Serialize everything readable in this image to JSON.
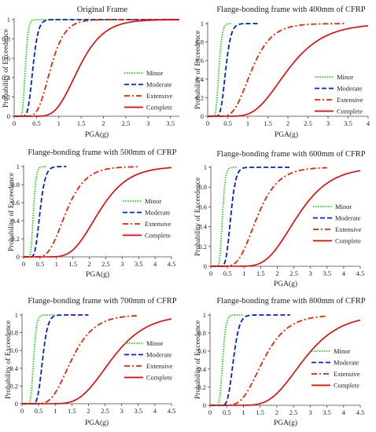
{
  "style": {
    "colors": {
      "Minor": "#22cc22",
      "Moderate": "#0022cc",
      "Extensive": "#ee2200",
      "Complete": "#ee0000"
    },
    "dash": {
      "Minor": "1.5,1.6",
      "Moderate": "6,3",
      "Extensive": "7,3,2,3",
      "Complete": ""
    }
  },
  "chart_data": [
    {
      "type": "line",
      "title": "Original Frame",
      "xlabel": "PGA(g)",
      "ylabel": "Probability of Exceedence",
      "xlim": [
        0,
        3.7
      ],
      "ylim": [
        0,
        1
      ],
      "xticks": [
        0,
        0.5,
        1,
        1.5,
        2,
        2.5,
        3,
        3.5
      ],
      "xtick_labels": [
        "0",
        "0.5",
        "1",
        "1.5",
        "2",
        "2.5",
        "3",
        "3.5"
      ],
      "yticks": [
        0,
        0.2,
        0.4,
        0.6,
        0.8,
        1
      ],
      "ytick_labels": [
        "0",
        "0.2",
        "0.4",
        "0.6",
        "0.8",
        "1"
      ],
      "legend_position": "lower-right",
      "series": [
        {
          "name": "Minor",
          "median": 0.25,
          "beta": 0.2,
          "xmax": 3.7
        },
        {
          "name": "Moderate",
          "median": 0.42,
          "beta": 0.22,
          "xmax": 3.7
        },
        {
          "name": "Extensive",
          "median": 0.82,
          "beta": 0.3,
          "xmax": 3.7
        },
        {
          "name": "Complete",
          "median": 1.45,
          "beta": 0.3,
          "xmax": 3.7
        }
      ]
    },
    {
      "type": "line",
      "title": "Flange-bonding frame with 400mm of CFRP",
      "xlabel": "PGA(g)",
      "ylabel": "Probability of Exceedence",
      "xlim": [
        0,
        4
      ],
      "ylim": [
        0,
        1
      ],
      "xticks": [
        0,
        0.5,
        1,
        1.5,
        2,
        2.5,
        3,
        3.5,
        4
      ],
      "xtick_labels": [
        "0",
        "0.5",
        "1",
        "1.5",
        "2",
        "2.5",
        "3",
        "3.5",
        "4"
      ],
      "yticks": [
        0,
        0.2,
        0.4,
        0.6,
        0.8,
        1
      ],
      "ytick_labels": [
        "0",
        "0.2",
        "0.4",
        "0.6",
        "0.8",
        "1"
      ],
      "legend_position": "lower-right",
      "series": [
        {
          "name": "Minor",
          "median": 0.28,
          "beta": 0.22,
          "xmax": 0.6
        },
        {
          "name": "Moderate",
          "median": 0.45,
          "beta": 0.23,
          "xmax": 1.3
        },
        {
          "name": "Extensive",
          "median": 1.1,
          "beta": 0.35,
          "xmax": 3.4
        },
        {
          "name": "Complete",
          "median": 2.0,
          "beta": 0.35,
          "xmax": 4.0
        }
      ]
    },
    {
      "type": "line",
      "title": "Flange-bonding frame with 500mm of CFRP",
      "xlabel": "PGA(g)",
      "ylabel": "Probability of Exceedence",
      "xlim": [
        0,
        4.5
      ],
      "ylim": [
        0,
        1
      ],
      "xticks": [
        0,
        0.5,
        1,
        1.5,
        2,
        2.5,
        3,
        3.5,
        4,
        4.5
      ],
      "xtick_labels": [
        "0",
        "0.5",
        "1",
        "1.5",
        "2",
        "2.5",
        "3",
        "3.5",
        "4",
        "4.5"
      ],
      "yticks": [
        0,
        0.2,
        0.4,
        0.6,
        0.8,
        1
      ],
      "ytick_labels": [
        "0",
        "0.2",
        "0.4",
        "0.6",
        "0.8",
        "1"
      ],
      "legend_position": "lower-right",
      "series": [
        {
          "name": "Minor",
          "median": 0.3,
          "beta": 0.22,
          "xmax": 0.7
        },
        {
          "name": "Moderate",
          "median": 0.5,
          "beta": 0.25,
          "xmax": 1.3
        },
        {
          "name": "Extensive",
          "median": 1.3,
          "beta": 0.35,
          "xmax": 3.5
        },
        {
          "name": "Complete",
          "median": 2.3,
          "beta": 0.3,
          "xmax": 4.5
        }
      ]
    },
    {
      "type": "line",
      "title": "Flange-bonding frame with 600mm of CFRP",
      "xlabel": "PGA(g)",
      "ylabel": "Probability of Exceedence",
      "xlim": [
        0,
        4.5
      ],
      "ylim": [
        0,
        1
      ],
      "xticks": [
        0,
        0.5,
        1,
        1.5,
        2,
        2.5,
        3,
        3.5,
        4,
        4.5
      ],
      "xtick_labels": [
        "0",
        "0.5",
        "1",
        "1.5",
        "2",
        "2.5",
        "3",
        "3.5",
        "4",
        "4.5"
      ],
      "yticks": [
        0,
        0.2,
        0.4,
        0.6,
        0.8,
        1
      ],
      "ytick_labels": [
        "0",
        "0.2",
        "0.4",
        "0.6",
        "0.8",
        "1"
      ],
      "legend_position": "lower-right",
      "series": [
        {
          "name": "Minor",
          "median": 0.35,
          "beta": 0.2,
          "xmax": 0.8
        },
        {
          "name": "Moderate",
          "median": 0.6,
          "beta": 0.2,
          "xmax": 2.4
        },
        {
          "name": "Extensive",
          "median": 1.4,
          "beta": 0.35,
          "xmax": 3.5
        },
        {
          "name": "Complete",
          "median": 2.6,
          "beta": 0.3,
          "xmax": 4.5
        }
      ]
    },
    {
      "type": "line",
      "title": "Flange-bonding frame with 700mm of CFRP",
      "xlabel": "PGA(g)",
      "ylabel": "Probability of Exceedence",
      "xlim": [
        0,
        4.5
      ],
      "ylim": [
        0,
        1
      ],
      "xticks": [
        0,
        0.5,
        1,
        1.5,
        2,
        2.5,
        3,
        3.5,
        4,
        4.5
      ],
      "xtick_labels": [
        "0",
        "0.5",
        "1",
        "1.5",
        "2",
        "2.5",
        "3",
        "3.5",
        "4",
        "4.5"
      ],
      "yticks": [
        0,
        0.2,
        0.4,
        0.6,
        0.8,
        1
      ],
      "ytick_labels": [
        "0",
        "0.2",
        "0.4",
        "0.6",
        "0.8",
        "1"
      ],
      "legend_position": "lower-right",
      "series": [
        {
          "name": "Minor",
          "median": 0.35,
          "beta": 0.2,
          "xmax": 1.0
        },
        {
          "name": "Moderate",
          "median": 0.62,
          "beta": 0.2,
          "xmax": 2.0
        },
        {
          "name": "Extensive",
          "median": 1.5,
          "beta": 0.35,
          "xmax": 3.5
        },
        {
          "name": "Complete",
          "median": 2.7,
          "beta": 0.3,
          "xmax": 4.5
        }
      ]
    },
    {
      "type": "line",
      "title": "Flange-bonding frame with 800mm of CFRP",
      "xlabel": "PGA(g)",
      "ylabel": "Probability of Exceedence",
      "xlim": [
        0,
        4.5
      ],
      "ylim": [
        0,
        1
      ],
      "xticks": [
        0,
        0.5,
        1,
        1.5,
        2,
        2.5,
        3,
        3.5,
        4,
        4.5
      ],
      "xtick_labels": [
        "0",
        "0.5",
        "1",
        "1.5",
        "2",
        "2.5",
        "3",
        "3.5",
        "4",
        "4.5"
      ],
      "yticks": [
        0,
        0.2,
        0.4,
        0.6,
        0.8,
        1
      ],
      "ytick_labels": [
        "0",
        "0.2",
        "0.4",
        "0.6",
        "0.8",
        "1"
      ],
      "legend_position": "lower-right",
      "series": [
        {
          "name": "Minor",
          "median": 0.38,
          "beta": 0.2,
          "xmax": 1.0
        },
        {
          "name": "Moderate",
          "median": 0.7,
          "beta": 0.2,
          "xmax": 2.4
        },
        {
          "name": "Extensive",
          "median": 1.6,
          "beta": 0.35,
          "xmax": 3.5
        },
        {
          "name": "Complete",
          "median": 2.8,
          "beta": 0.3,
          "xmax": 4.5
        }
      ]
    }
  ]
}
